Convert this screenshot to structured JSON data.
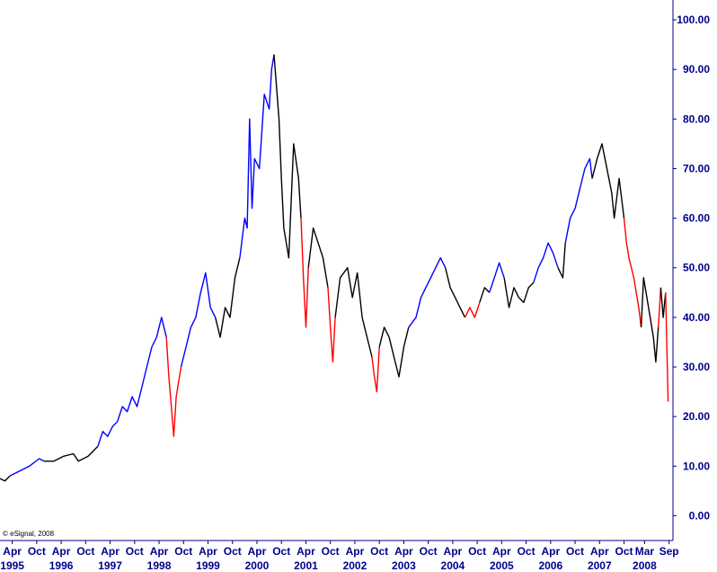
{
  "credit": "© eSignal, 2008",
  "colors": {
    "background": "#ffffff",
    "axis": "#00008b",
    "label": "#00008b",
    "series_up": "#0000ff",
    "series_neutral": "#000000",
    "series_down": "#ff0000"
  },
  "chart_data": {
    "type": "line",
    "title": "",
    "xlabel": "",
    "ylabel": "",
    "ylim": [
      -5,
      104
    ],
    "xlim": [
      1995.0,
      2008.75
    ],
    "y_axis_position": "right",
    "grid": false,
    "y_ticks": [
      0,
      10,
      20,
      30,
      40,
      50,
      60,
      70,
      80,
      90,
      100
    ],
    "y_tick_labels": [
      "0.00",
      "10.00",
      "20.00",
      "30.00",
      "40.00",
      "50.00",
      "60.00",
      "70.00",
      "80.00",
      "90.00",
      "100.00"
    ],
    "x_ticks": [
      {
        "label": "Apr",
        "x": 1995.25
      },
      {
        "label": "Oct",
        "x": 1995.75
      },
      {
        "label": "Apr",
        "x": 1996.25
      },
      {
        "label": "Oct",
        "x": 1996.75
      },
      {
        "label": "Apr",
        "x": 1997.25
      },
      {
        "label": "Oct",
        "x": 1997.75
      },
      {
        "label": "Apr",
        "x": 1998.25
      },
      {
        "label": "Oct",
        "x": 1998.75
      },
      {
        "label": "Apr",
        "x": 1999.25
      },
      {
        "label": "Oct",
        "x": 1999.75
      },
      {
        "label": "Apr",
        "x": 2000.25
      },
      {
        "label": "Oct",
        "x": 2000.75
      },
      {
        "label": "Apr",
        "x": 2001.25
      },
      {
        "label": "Oct",
        "x": 2001.75
      },
      {
        "label": "Apr",
        "x": 2002.25
      },
      {
        "label": "Oct",
        "x": 2002.75
      },
      {
        "label": "Apr",
        "x": 2003.25
      },
      {
        "label": "Oct",
        "x": 2003.75
      },
      {
        "label": "Apr",
        "x": 2004.25
      },
      {
        "label": "Oct",
        "x": 2004.75
      },
      {
        "label": "Apr",
        "x": 2005.25
      },
      {
        "label": "Oct",
        "x": 2005.75
      },
      {
        "label": "Apr",
        "x": 2006.25
      },
      {
        "label": "Oct",
        "x": 2006.75
      },
      {
        "label": "Apr",
        "x": 2007.25
      },
      {
        "label": "Oct",
        "x": 2007.75
      },
      {
        "label": "Mar",
        "x": 2008.17
      },
      {
        "label": "Sep",
        "x": 2008.67
      }
    ],
    "year_labels": [
      {
        "label": "1995",
        "x": 1995.25
      },
      {
        "label": "1996",
        "x": 1996.25
      },
      {
        "label": "1997",
        "x": 1997.25
      },
      {
        "label": "1998",
        "x": 1998.25
      },
      {
        "label": "1999",
        "x": 1999.25
      },
      {
        "label": "2000",
        "x": 2000.25
      },
      {
        "label": "2001",
        "x": 2001.25
      },
      {
        "label": "2002",
        "x": 2002.25
      },
      {
        "label": "2003",
        "x": 2003.25
      },
      {
        "label": "2004",
        "x": 2004.25
      },
      {
        "label": "2005",
        "x": 2005.25
      },
      {
        "label": "2006",
        "x": 2006.25
      },
      {
        "label": "2007",
        "x": 2007.25
      },
      {
        "label": "2008",
        "x": 2008.17
      }
    ],
    "segments": [
      {
        "color": "series_neutral",
        "points": [
          [
            1995.0,
            7.5
          ],
          [
            1995.1,
            7.0
          ],
          [
            1995.2,
            8.0
          ]
        ]
      },
      {
        "color": "series_up",
        "points": [
          [
            1995.2,
            8.0
          ],
          [
            1995.4,
            9.0
          ],
          [
            1995.6,
            10.0
          ],
          [
            1995.8,
            11.5
          ],
          [
            1995.9,
            11.0
          ]
        ]
      },
      {
        "color": "series_neutral",
        "points": [
          [
            1995.9,
            11.0
          ],
          [
            1996.1,
            11.0
          ],
          [
            1996.3,
            12.0
          ],
          [
            1996.5,
            12.5
          ],
          [
            1996.6,
            11.0
          ],
          [
            1996.8,
            12.0
          ],
          [
            1997.0,
            14.0
          ]
        ]
      },
      {
        "color": "series_up",
        "points": [
          [
            1997.0,
            14.0
          ],
          [
            1997.1,
            17.0
          ],
          [
            1997.2,
            16.0
          ],
          [
            1997.3,
            18.0
          ],
          [
            1997.4,
            19.0
          ],
          [
            1997.5,
            22.0
          ],
          [
            1997.6,
            21.0
          ],
          [
            1997.7,
            24.0
          ],
          [
            1997.8,
            22.0
          ],
          [
            1997.9,
            26.0
          ],
          [
            1998.0,
            30.0
          ],
          [
            1998.1,
            34.0
          ],
          [
            1998.2,
            36.0
          ],
          [
            1998.3,
            40.0
          ],
          [
            1998.4,
            36.0
          ]
        ]
      },
      {
        "color": "series_down",
        "points": [
          [
            1998.4,
            36.0
          ],
          [
            1998.45,
            28.0
          ],
          [
            1998.5,
            22.0
          ],
          [
            1998.55,
            16.0
          ],
          [
            1998.6,
            24.0
          ],
          [
            1998.7,
            30.0
          ]
        ]
      },
      {
        "color": "series_up",
        "points": [
          [
            1998.7,
            30.0
          ],
          [
            1998.8,
            34.0
          ],
          [
            1998.9,
            38.0
          ],
          [
            1999.0,
            40.0
          ],
          [
            1999.1,
            45.0
          ],
          [
            1999.2,
            49.0
          ],
          [
            1999.3,
            42.0
          ],
          [
            1999.4,
            40.0
          ]
        ]
      },
      {
        "color": "series_neutral",
        "points": [
          [
            1999.4,
            40.0
          ],
          [
            1999.5,
            36.0
          ],
          [
            1999.6,
            42.0
          ],
          [
            1999.7,
            40.0
          ],
          [
            1999.8,
            48.0
          ],
          [
            1999.9,
            52.0
          ]
        ]
      },
      {
        "color": "series_up",
        "points": [
          [
            1999.9,
            52.0
          ],
          [
            2000.0,
            60.0
          ],
          [
            2000.05,
            58.0
          ],
          [
            2000.1,
            80.0
          ],
          [
            2000.15,
            62.0
          ],
          [
            2000.2,
            72.0
          ],
          [
            2000.3,
            70.0
          ],
          [
            2000.4,
            85.0
          ],
          [
            2000.5,
            82.0
          ],
          [
            2000.55,
            90.0
          ],
          [
            2000.6,
            93.0
          ]
        ]
      },
      {
        "color": "series_neutral",
        "points": [
          [
            2000.6,
            93.0
          ],
          [
            2000.7,
            80.0
          ],
          [
            2000.75,
            68.0
          ],
          [
            2000.8,
            58.0
          ],
          [
            2000.9,
            52.0
          ],
          [
            2001.0,
            75.0
          ],
          [
            2001.1,
            68.0
          ],
          [
            2001.15,
            60.0
          ]
        ]
      },
      {
        "color": "series_down",
        "points": [
          [
            2001.15,
            60.0
          ],
          [
            2001.2,
            48.0
          ],
          [
            2001.25,
            38.0
          ],
          [
            2001.3,
            50.0
          ]
        ]
      },
      {
        "color": "series_neutral",
        "points": [
          [
            2001.3,
            50.0
          ],
          [
            2001.4,
            58.0
          ],
          [
            2001.5,
            55.0
          ],
          [
            2001.6,
            52.0
          ],
          [
            2001.7,
            46.0
          ]
        ]
      },
      {
        "color": "series_down",
        "points": [
          [
            2001.7,
            46.0
          ],
          [
            2001.75,
            38.0
          ],
          [
            2001.8,
            31.0
          ],
          [
            2001.85,
            40.0
          ]
        ]
      },
      {
        "color": "series_neutral",
        "points": [
          [
            2001.85,
            40.0
          ],
          [
            2001.95,
            48.0
          ],
          [
            2002.1,
            50.0
          ],
          [
            2002.2,
            44.0
          ],
          [
            2002.3,
            49.0
          ],
          [
            2002.4,
            40.0
          ],
          [
            2002.5,
            36.0
          ],
          [
            2002.6,
            32.0
          ]
        ]
      },
      {
        "color": "series_down",
        "points": [
          [
            2002.6,
            32.0
          ],
          [
            2002.65,
            28.0
          ],
          [
            2002.7,
            25.0
          ],
          [
            2002.75,
            34.0
          ]
        ]
      },
      {
        "color": "series_neutral",
        "points": [
          [
            2002.75,
            34.0
          ],
          [
            2002.85,
            38.0
          ],
          [
            2002.95,
            36.0
          ],
          [
            2003.05,
            32.0
          ],
          [
            2003.15,
            28.0
          ],
          [
            2003.25,
            34.0
          ],
          [
            2003.35,
            38.0
          ]
        ]
      },
      {
        "color": "series_up",
        "points": [
          [
            2003.35,
            38.0
          ],
          [
            2003.5,
            40.0
          ],
          [
            2003.6,
            44.0
          ],
          [
            2003.7,
            46.0
          ],
          [
            2003.8,
            48.0
          ],
          [
            2003.9,
            50.0
          ],
          [
            2004.0,
            52.0
          ],
          [
            2004.1,
            50.0
          ]
        ]
      },
      {
        "color": "series_neutral",
        "points": [
          [
            2004.1,
            50.0
          ],
          [
            2004.2,
            46.0
          ],
          [
            2004.3,
            44.0
          ],
          [
            2004.4,
            42.0
          ],
          [
            2004.5,
            40.0
          ]
        ]
      },
      {
        "color": "series_down",
        "points": [
          [
            2004.5,
            40.0
          ],
          [
            2004.6,
            42.0
          ],
          [
            2004.7,
            40.0
          ],
          [
            2004.8,
            43.0
          ]
        ]
      },
      {
        "color": "series_neutral",
        "points": [
          [
            2004.8,
            43.0
          ],
          [
            2004.9,
            46.0
          ],
          [
            2005.0,
            45.0
          ]
        ]
      },
      {
        "color": "series_up",
        "points": [
          [
            2005.0,
            45.0
          ],
          [
            2005.1,
            48.0
          ],
          [
            2005.2,
            51.0
          ],
          [
            2005.3,
            48.0
          ]
        ]
      },
      {
        "color": "series_neutral",
        "points": [
          [
            2005.3,
            48.0
          ],
          [
            2005.4,
            42.0
          ],
          [
            2005.5,
            46.0
          ],
          [
            2005.6,
            44.0
          ],
          [
            2005.7,
            43.0
          ],
          [
            2005.8,
            46.0
          ],
          [
            2005.9,
            47.0
          ]
        ]
      },
      {
        "color": "series_up",
        "points": [
          [
            2005.9,
            47.0
          ],
          [
            2006.0,
            50.0
          ],
          [
            2006.1,
            52.0
          ],
          [
            2006.2,
            55.0
          ],
          [
            2006.3,
            53.0
          ],
          [
            2006.4,
            50.0
          ]
        ]
      },
      {
        "color": "series_neutral",
        "points": [
          [
            2006.4,
            50.0
          ],
          [
            2006.5,
            48.0
          ],
          [
            2006.55,
            55.0
          ]
        ]
      },
      {
        "color": "series_up",
        "points": [
          [
            2006.55,
            55.0
          ],
          [
            2006.65,
            60.0
          ],
          [
            2006.75,
            62.0
          ],
          [
            2006.85,
            66.0
          ],
          [
            2006.95,
            70.0
          ],
          [
            2007.05,
            72.0
          ],
          [
            2007.1,
            68.0
          ]
        ]
      },
      {
        "color": "series_neutral",
        "points": [
          [
            2007.1,
            68.0
          ],
          [
            2007.2,
            72.0
          ],
          [
            2007.3,
            75.0
          ],
          [
            2007.4,
            70.0
          ],
          [
            2007.5,
            65.0
          ],
          [
            2007.55,
            60.0
          ],
          [
            2007.65,
            68.0
          ],
          [
            2007.75,
            60.0
          ]
        ]
      },
      {
        "color": "series_down",
        "points": [
          [
            2007.75,
            60.0
          ],
          [
            2007.8,
            55.0
          ],
          [
            2007.85,
            52.0
          ],
          [
            2007.95,
            48.0
          ],
          [
            2008.05,
            42.0
          ],
          [
            2008.1,
            38.0
          ]
        ]
      },
      {
        "color": "series_neutral",
        "points": [
          [
            2008.1,
            38.0
          ],
          [
            2008.15,
            48.0
          ],
          [
            2008.25,
            42.0
          ],
          [
            2008.35,
            36.0
          ],
          [
            2008.4,
            31.0
          ],
          [
            2008.45,
            38.0
          ]
        ]
      },
      {
        "color": "series_down",
        "points": [
          [
            2008.45,
            38.0
          ],
          [
            2008.5,
            46.0
          ]
        ]
      },
      {
        "color": "series_neutral",
        "points": [
          [
            2008.5,
            46.0
          ],
          [
            2008.55,
            40.0
          ],
          [
            2008.6,
            45.0
          ]
        ]
      },
      {
        "color": "series_down",
        "points": [
          [
            2008.6,
            45.0
          ],
          [
            2008.65,
            23.0
          ]
        ]
      }
    ]
  }
}
